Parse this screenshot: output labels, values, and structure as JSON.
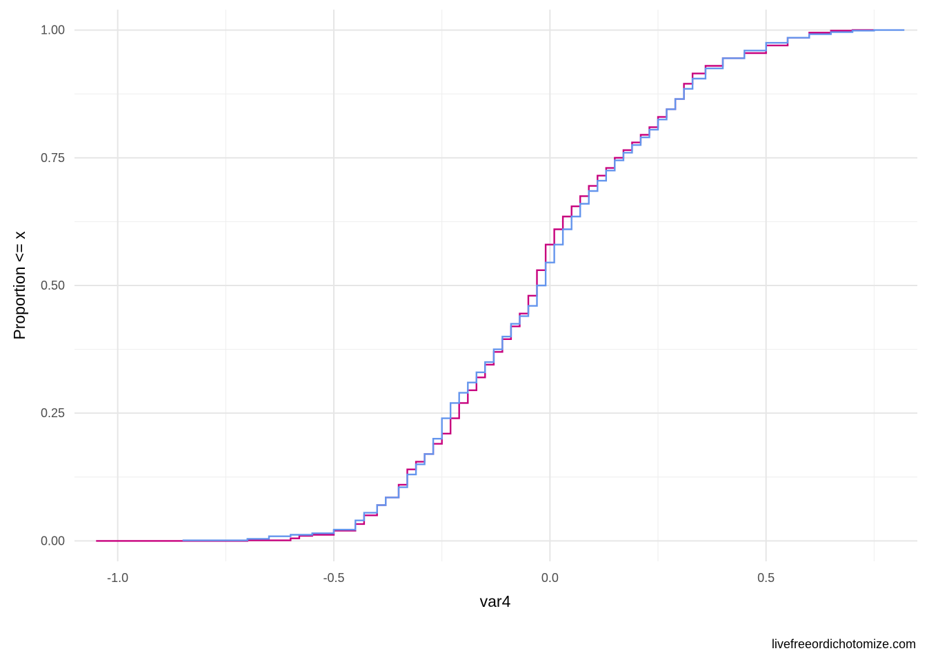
{
  "chart_data": {
    "type": "line",
    "xlabel": "var4",
    "ylabel": "Proportion <= x",
    "caption": "livefreeordichotomize.com",
    "xlim": [
      -1.1,
      0.85
    ],
    "ylim": [
      -0.04,
      1.04
    ],
    "x_ticks": [
      {
        "value": -1.0,
        "label": "-1.0"
      },
      {
        "value": -0.5,
        "label": "-0.5"
      },
      {
        "value": 0.0,
        "label": "0.0"
      },
      {
        "value": 0.5,
        "label": "0.5"
      }
    ],
    "x_minor_ticks": [
      -0.75,
      -0.25,
      0.25,
      0.75
    ],
    "y_ticks": [
      {
        "value": 0.0,
        "label": "0.00"
      },
      {
        "value": 0.25,
        "label": "0.25"
      },
      {
        "value": 0.5,
        "label": "0.50"
      },
      {
        "value": 0.75,
        "label": "0.75"
      },
      {
        "value": 1.0,
        "label": "1.00"
      }
    ],
    "y_minor_ticks": [
      0.125,
      0.375,
      0.625,
      0.875
    ],
    "grid": true,
    "legend": "none",
    "step": true,
    "series": [
      {
        "color": "#c7007d",
        "x": [
          -1.05,
          -0.7,
          -0.6,
          -0.58,
          -0.55,
          -0.5,
          -0.45,
          -0.43,
          -0.4,
          -0.38,
          -0.35,
          -0.33,
          -0.31,
          -0.29,
          -0.27,
          -0.25,
          -0.23,
          -0.21,
          -0.19,
          -0.17,
          -0.15,
          -0.13,
          -0.11,
          -0.09,
          -0.07,
          -0.05,
          -0.03,
          -0.01,
          0.01,
          0.03,
          0.05,
          0.07,
          0.09,
          0.11,
          0.13,
          0.15,
          0.17,
          0.19,
          0.21,
          0.23,
          0.25,
          0.27,
          0.29,
          0.31,
          0.33,
          0.36,
          0.4,
          0.45,
          0.5,
          0.55,
          0.6,
          0.65,
          0.7,
          0.75
        ],
        "y": [
          0.0,
          0.001,
          0.005,
          0.01,
          0.012,
          0.02,
          0.033,
          0.05,
          0.07,
          0.085,
          0.11,
          0.14,
          0.155,
          0.17,
          0.19,
          0.21,
          0.24,
          0.27,
          0.295,
          0.32,
          0.345,
          0.37,
          0.395,
          0.42,
          0.445,
          0.48,
          0.53,
          0.58,
          0.61,
          0.635,
          0.655,
          0.675,
          0.695,
          0.715,
          0.73,
          0.75,
          0.765,
          0.78,
          0.795,
          0.81,
          0.83,
          0.845,
          0.865,
          0.895,
          0.915,
          0.93,
          0.945,
          0.955,
          0.97,
          0.985,
          0.995,
          0.999,
          1.0,
          1.0
        ]
      },
      {
        "color": "#6495ed",
        "x": [
          -0.85,
          -0.7,
          -0.65,
          -0.6,
          -0.55,
          -0.5,
          -0.45,
          -0.43,
          -0.4,
          -0.38,
          -0.35,
          -0.33,
          -0.31,
          -0.29,
          -0.27,
          -0.25,
          -0.23,
          -0.21,
          -0.19,
          -0.17,
          -0.15,
          -0.13,
          -0.11,
          -0.09,
          -0.07,
          -0.05,
          -0.03,
          -0.01,
          0.01,
          0.03,
          0.05,
          0.07,
          0.09,
          0.11,
          0.13,
          0.15,
          0.17,
          0.19,
          0.21,
          0.23,
          0.25,
          0.27,
          0.29,
          0.31,
          0.33,
          0.36,
          0.4,
          0.45,
          0.5,
          0.55,
          0.6,
          0.65,
          0.7,
          0.75,
          0.82
        ],
        "y": [
          0.001,
          0.004,
          0.009,
          0.012,
          0.015,
          0.022,
          0.04,
          0.055,
          0.07,
          0.085,
          0.105,
          0.13,
          0.15,
          0.17,
          0.2,
          0.24,
          0.27,
          0.29,
          0.31,
          0.33,
          0.35,
          0.375,
          0.4,
          0.425,
          0.44,
          0.46,
          0.5,
          0.545,
          0.58,
          0.61,
          0.635,
          0.66,
          0.685,
          0.705,
          0.725,
          0.745,
          0.76,
          0.775,
          0.79,
          0.805,
          0.825,
          0.845,
          0.865,
          0.885,
          0.905,
          0.925,
          0.945,
          0.96,
          0.975,
          0.985,
          0.992,
          0.996,
          0.999,
          1.0,
          1.0
        ]
      }
    ]
  }
}
